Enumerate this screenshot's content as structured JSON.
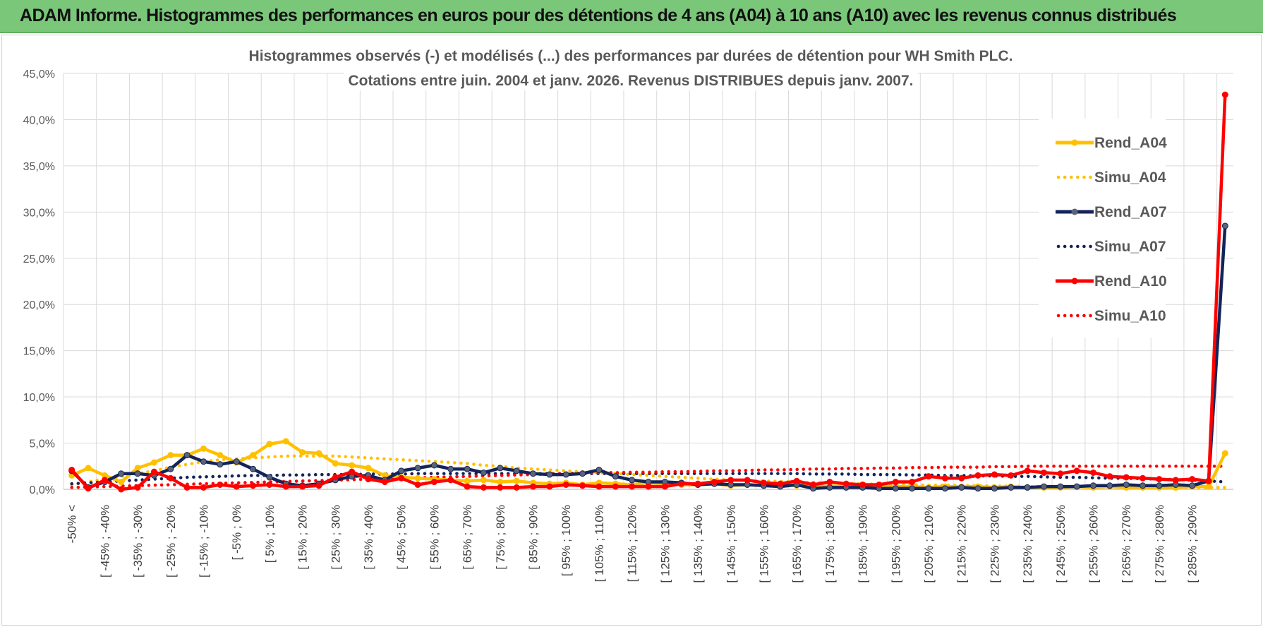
{
  "banner": {
    "title": "ADAM Informe. Histogrammes des performances en euros pour des détentions de 4 ans (A04) à 10 ans (A10) avec les revenus connus distribués"
  },
  "chart_data": {
    "type": "line",
    "title": [
      "Histogrammes observés (-) et modélisés (...) des performances par durées de détention pour WH Smith PLC.",
      "Cotations entre juin. 2004 et janv. 2026. Revenus DISTRIBUES depuis janv. 2007."
    ],
    "ylim": [
      0,
      45
    ],
    "yticks": [
      "0,0%",
      "5,0%",
      "10,0%",
      "15,0%",
      "20,0%",
      "25,0%",
      "30,0%",
      "35,0%",
      "40,0%",
      "45,0%"
    ],
    "ytick_values": [
      0,
      5,
      10,
      15,
      20,
      25,
      30,
      35,
      40,
      45
    ],
    "xtick_labels": [
      "-50% <",
      "[ -45% ; -40%",
      "[ -35% ; -30%",
      "[ -25% ; -20%",
      "[ -15% ; -10%",
      "[ -5% ; 0%",
      "[ 5% ; 10%",
      "[ 15% ; 20%",
      "[ 25% ; 30%",
      "[ 35% ; 40%",
      "[ 45% ; 50%",
      "[ 55% ; 60%",
      "[ 65% ; 70%",
      "[ 75% ; 80%",
      "[ 85% ; 90%",
      "[ 95% ; 100%",
      "[ 105% ; 110%",
      "[ 115% ; 120%",
      "[ 125% ; 130%",
      "[ 135% ; 140%",
      "[ 145% ; 150%",
      "[ 155% ; 160%",
      "[ 165% ; 170%",
      "[ 175% ; 180%",
      "[ 185% ; 190%",
      "[ 195% ; 200%",
      "[ 205% ; 210%",
      "[ 215% ; 220%",
      "[ 225% ; 230%",
      "[ 235% ; 240%",
      "[ 245% ; 250%",
      "[ 255% ; 260%",
      "[ 265% ; 270%",
      "[ 275% ; 280%",
      "[ 285% ; 290%"
    ],
    "n_categories": 71,
    "series": [
      {
        "name": "Rend_A04",
        "style": "solid",
        "color": "#ffc000",
        "values": [
          1.5,
          2.3,
          1.5,
          0.8,
          2.3,
          2.9,
          3.7,
          3.7,
          4.4,
          3.7,
          2.9,
          3.7,
          4.9,
          5.2,
          4.0,
          3.9,
          2.8,
          2.6,
          2.3,
          1.5,
          1.3,
          1.2,
          1.1,
          1.0,
          0.9,
          1.0,
          0.8,
          0.9,
          0.7,
          0.6,
          0.7,
          0.5,
          0.7,
          0.6,
          0.5,
          0.7,
          0.6,
          0.5,
          0.5,
          0.6,
          0.4,
          0.5,
          0.4,
          0.5,
          0.4,
          0.4,
          0.3,
          0.4,
          0.3,
          0.3,
          0.3,
          0.3,
          0.2,
          0.3,
          0.3,
          0.3,
          0.2,
          0.3,
          0.2,
          0.2,
          0.2,
          0.3,
          0.2,
          0.3,
          0.2,
          0.2,
          0.2,
          0.2,
          0.3,
          0.3,
          3.9
        ]
      },
      {
        "name": "Simu_A04",
        "style": "dotted",
        "color": "#ffc000",
        "values": [
          0.5,
          0.8,
          1.1,
          1.4,
          1.7,
          2.0,
          2.4,
          2.7,
          3.0,
          3.2,
          3.3,
          3.4,
          3.5,
          3.6,
          3.6,
          3.6,
          3.6,
          3.5,
          3.4,
          3.3,
          3.2,
          3.1,
          3.0,
          2.9,
          2.8,
          2.6,
          2.5,
          2.3,
          2.2,
          2.1,
          2.0,
          1.9,
          1.8,
          1.7,
          1.6,
          1.5,
          1.4,
          1.3,
          1.2,
          1.1,
          1.0,
          0.95,
          0.9,
          0.85,
          0.8,
          0.75,
          0.7,
          0.65,
          0.6,
          0.55,
          0.5,
          0.5,
          0.45,
          0.45,
          0.4,
          0.4,
          0.35,
          0.35,
          0.3,
          0.3,
          0.3,
          0.3,
          0.25,
          0.25,
          0.25,
          0.25,
          0.25,
          0.2,
          0.2,
          0.2,
          0.2
        ]
      },
      {
        "name": "Rend_A07",
        "style": "solid",
        "color": "#14245a",
        "values": [
          2.0,
          0.2,
          0.8,
          1.7,
          1.7,
          1.5,
          2.2,
          3.7,
          3.0,
          2.7,
          3.0,
          2.2,
          1.3,
          0.6,
          0.4,
          0.6,
          1.0,
          1.4,
          1.5,
          1.0,
          2.0,
          2.3,
          2.6,
          2.2,
          2.2,
          1.8,
          2.3,
          2.0,
          1.7,
          1.6,
          1.6,
          1.7,
          2.1,
          1.4,
          1.0,
          0.8,
          0.8,
          0.7,
          0.5,
          0.6,
          0.5,
          0.5,
          0.4,
          0.3,
          0.5,
          0.1,
          0.2,
          0.2,
          0.2,
          0.1,
          0.1,
          0.1,
          0.1,
          0.1,
          0.2,
          0.1,
          0.1,
          0.2,
          0.2,
          0.3,
          0.3,
          0.3,
          0.4,
          0.4,
          0.5,
          0.4,
          0.4,
          0.5,
          0.4,
          0.9,
          28.5
        ]
      },
      {
        "name": "Simu_A07",
        "style": "dotted",
        "color": "#14245a",
        "values": [
          0.6,
          0.7,
          0.8,
          0.9,
          1.0,
          1.1,
          1.2,
          1.3,
          1.35,
          1.4,
          1.45,
          1.5,
          1.5,
          1.55,
          1.55,
          1.6,
          1.6,
          1.6,
          1.65,
          1.65,
          1.65,
          1.7,
          1.7,
          1.7,
          1.7,
          1.7,
          1.7,
          1.7,
          1.7,
          1.7,
          1.7,
          1.7,
          1.7,
          1.7,
          1.7,
          1.7,
          1.7,
          1.7,
          1.7,
          1.7,
          1.7,
          1.7,
          1.7,
          1.7,
          1.7,
          1.65,
          1.65,
          1.65,
          1.6,
          1.6,
          1.6,
          1.55,
          1.55,
          1.5,
          1.5,
          1.45,
          1.45,
          1.4,
          1.4,
          1.35,
          1.3,
          1.3,
          1.25,
          1.2,
          1.2,
          1.15,
          1.1,
          1.05,
          1.0,
          0.9,
          0.8
        ]
      },
      {
        "name": "Rend_A10",
        "style": "solid",
        "color": "#ff0000",
        "values": [
          2.1,
          0.1,
          1.0,
          0.0,
          0.2,
          1.9,
          1.2,
          0.2,
          0.2,
          0.5,
          0.3,
          0.4,
          0.5,
          0.3,
          0.3,
          0.4,
          1.3,
          1.9,
          1.1,
          0.8,
          1.2,
          0.5,
          0.8,
          1.0,
          0.3,
          0.2,
          0.2,
          0.2,
          0.3,
          0.3,
          0.5,
          0.4,
          0.3,
          0.3,
          0.3,
          0.3,
          0.3,
          0.6,
          0.6,
          0.8,
          1.0,
          1.0,
          0.7,
          0.6,
          0.9,
          0.5,
          0.8,
          0.6,
          0.5,
          0.5,
          0.8,
          0.8,
          1.4,
          1.2,
          1.2,
          1.5,
          1.6,
          1.5,
          2.0,
          1.8,
          1.7,
          2.0,
          1.8,
          1.4,
          1.3,
          1.2,
          1.1,
          1.0,
          1.1,
          0.9,
          42.7
        ]
      },
      {
        "name": "Simu_A10",
        "style": "dotted",
        "color": "#ff0000",
        "values": [
          0.2,
          0.25,
          0.3,
          0.35,
          0.4,
          0.45,
          0.5,
          0.55,
          0.6,
          0.65,
          0.7,
          0.75,
          0.8,
          0.85,
          0.9,
          0.95,
          1.0,
          1.05,
          1.1,
          1.15,
          1.2,
          1.25,
          1.3,
          1.35,
          1.4,
          1.45,
          1.5,
          1.55,
          1.6,
          1.65,
          1.7,
          1.75,
          1.8,
          1.8,
          1.85,
          1.85,
          1.9,
          1.9,
          1.95,
          2.0,
          2.0,
          2.05,
          2.1,
          2.1,
          2.15,
          2.2,
          2.2,
          2.25,
          2.25,
          2.3,
          2.3,
          2.35,
          2.35,
          2.4,
          2.4,
          2.4,
          2.45,
          2.45,
          2.5,
          2.5,
          2.5,
          2.5,
          2.5,
          2.5,
          2.5,
          2.5,
          2.5,
          2.5,
          2.5,
          2.5,
          2.5
        ]
      }
    ],
    "legend_position": "right"
  }
}
